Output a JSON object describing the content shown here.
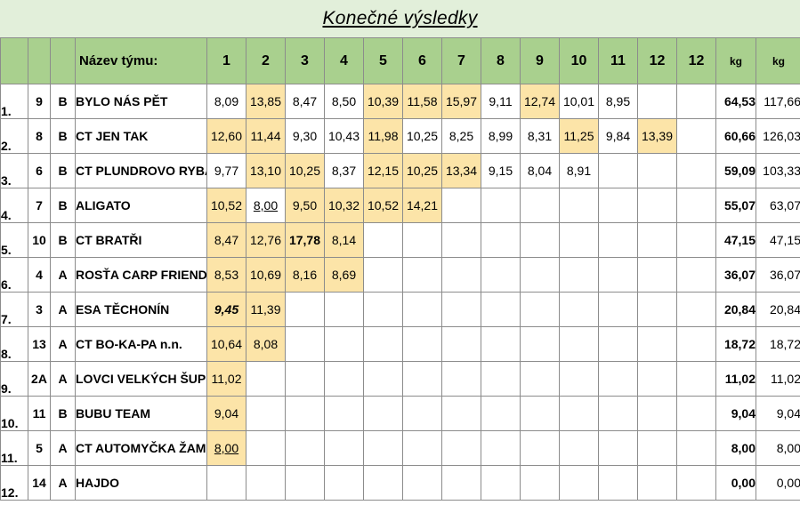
{
  "title": "Konečné výsledky",
  "headers": {
    "team": "Název týmu:",
    "rounds": [
      "1",
      "2",
      "3",
      "4",
      "5",
      "6",
      "7",
      "8",
      "9",
      "10",
      "11",
      "12",
      "12"
    ],
    "kg1": "kg",
    "kg2": "kg"
  },
  "highlight_color": "#fce4a8",
  "header_color": "#a9d08e",
  "title_bg_color": "#e2efda",
  "rows": [
    {
      "rank": "1.",
      "num": "9",
      "cat": "B",
      "team": "BYLO NÁS PĚT",
      "kg1": "64,53",
      "kg2": "117,66",
      "values": [
        {
          "v": "8,09"
        },
        {
          "v": "13,85",
          "hl": true
        },
        {
          "v": "8,47"
        },
        {
          "v": "8,50"
        },
        {
          "v": "10,39",
          "hl": true
        },
        {
          "v": "11,58",
          "hl": true
        },
        {
          "v": "15,97",
          "hl": true
        },
        {
          "v": "9,11"
        },
        {
          "v": "12,74",
          "hl": true
        },
        {
          "v": "10,01"
        },
        {
          "v": "8,95"
        },
        {
          "v": ""
        },
        {
          "v": ""
        }
      ]
    },
    {
      "rank": "2.",
      "num": "8",
      "cat": "B",
      "team": "CT JEN TAK",
      "kg1": "60,66",
      "kg2": "126,03",
      "values": [
        {
          "v": "12,60",
          "hl": true
        },
        {
          "v": "11,44",
          "hl": true
        },
        {
          "v": "9,30"
        },
        {
          "v": "10,43"
        },
        {
          "v": "11,98",
          "hl": true
        },
        {
          "v": "10,25"
        },
        {
          "v": "8,25"
        },
        {
          "v": "8,99"
        },
        {
          "v": "8,31"
        },
        {
          "v": "11,25",
          "hl": true
        },
        {
          "v": "9,84"
        },
        {
          "v": "13,39",
          "hl": true
        },
        {
          "v": ""
        }
      ]
    },
    {
      "rank": "3.",
      "num": "6",
      "cat": "B",
      "team": "CT PLUNDROVO RYBÁŘI",
      "kg1": "59,09",
      "kg2": "103,33",
      "values": [
        {
          "v": "9,77"
        },
        {
          "v": "13,10",
          "hl": true
        },
        {
          "v": "10,25",
          "hl": true
        },
        {
          "v": "8,37"
        },
        {
          "v": "12,15",
          "hl": true
        },
        {
          "v": "10,25",
          "hl": true
        },
        {
          "v": "13,34",
          "hl": true
        },
        {
          "v": "9,15"
        },
        {
          "v": "8,04"
        },
        {
          "v": "8,91"
        },
        {
          "v": ""
        },
        {
          "v": ""
        },
        {
          "v": ""
        }
      ]
    },
    {
      "rank": "4.",
      "num": "7",
      "cat": "B",
      "team": "ALIGATO",
      "kg1": "55,07",
      "kg2": "63,07",
      "values": [
        {
          "v": "10,52",
          "hl": true
        },
        {
          "v": "8,00",
          "u": true
        },
        {
          "v": "9,50",
          "hl": true
        },
        {
          "v": "10,32",
          "hl": true
        },
        {
          "v": "10,52",
          "hl": true
        },
        {
          "v": "14,21",
          "hl": true
        },
        {
          "v": ""
        },
        {
          "v": ""
        },
        {
          "v": ""
        },
        {
          "v": ""
        },
        {
          "v": ""
        },
        {
          "v": ""
        },
        {
          "v": ""
        }
      ]
    },
    {
      "rank": "5.",
      "num": "10",
      "cat": "B",
      "team": "CT BRATŘI",
      "kg1": "47,15",
      "kg2": "47,15",
      "values": [
        {
          "v": "8,47",
          "hl": true
        },
        {
          "v": "12,76",
          "hl": true
        },
        {
          "v": "17,78",
          "hl": true,
          "b": true
        },
        {
          "v": "8,14",
          "hl": true
        },
        {
          "v": ""
        },
        {
          "v": ""
        },
        {
          "v": ""
        },
        {
          "v": ""
        },
        {
          "v": ""
        },
        {
          "v": ""
        },
        {
          "v": ""
        },
        {
          "v": ""
        },
        {
          "v": ""
        }
      ]
    },
    {
      "rank": "6.",
      "num": "4",
      "cat": "A",
      "team": "ROSŤA CARP FRIENDS",
      "kg1": "36,07",
      "kg2": "36,07",
      "values": [
        {
          "v": "8,53",
          "hl": true
        },
        {
          "v": "10,69",
          "hl": true
        },
        {
          "v": "8,16",
          "hl": true
        },
        {
          "v": "8,69",
          "hl": true
        },
        {
          "v": ""
        },
        {
          "v": ""
        },
        {
          "v": ""
        },
        {
          "v": ""
        },
        {
          "v": ""
        },
        {
          "v": ""
        },
        {
          "v": ""
        },
        {
          "v": ""
        },
        {
          "v": ""
        }
      ]
    },
    {
      "rank": "7.",
      "num": "3",
      "cat": "A",
      "team": "ESA TĚCHONÍN",
      "kg1": "20,84",
      "kg2": "20,84",
      "values": [
        {
          "v": "9,45",
          "hl": true,
          "bi": true
        },
        {
          "v": "11,39",
          "hl": true
        },
        {
          "v": ""
        },
        {
          "v": ""
        },
        {
          "v": ""
        },
        {
          "v": ""
        },
        {
          "v": ""
        },
        {
          "v": ""
        },
        {
          "v": ""
        },
        {
          "v": ""
        },
        {
          "v": ""
        },
        {
          "v": ""
        },
        {
          "v": ""
        }
      ]
    },
    {
      "rank": "8.",
      "num": "13",
      "cat": "A",
      "team": "CT BO-KA-PA n.n.",
      "kg1": "18,72",
      "kg2": "18,72",
      "values": [
        {
          "v": "10,64",
          "hl": true
        },
        {
          "v": "8,08",
          "hl": true
        },
        {
          "v": ""
        },
        {
          "v": ""
        },
        {
          "v": ""
        },
        {
          "v": ""
        },
        {
          "v": ""
        },
        {
          "v": ""
        },
        {
          "v": ""
        },
        {
          "v": ""
        },
        {
          "v": ""
        },
        {
          "v": ""
        },
        {
          "v": ""
        }
      ]
    },
    {
      "rank": "9.",
      "num": "2A",
      "cat": "A",
      "team": "LOVCI VELKÝCH ŠUPIN",
      "kg1": "11,02",
      "kg2": "11,02",
      "values": [
        {
          "v": "11,02",
          "hl": true
        },
        {
          "v": ""
        },
        {
          "v": ""
        },
        {
          "v": ""
        },
        {
          "v": ""
        },
        {
          "v": ""
        },
        {
          "v": ""
        },
        {
          "v": ""
        },
        {
          "v": ""
        },
        {
          "v": ""
        },
        {
          "v": ""
        },
        {
          "v": ""
        },
        {
          "v": ""
        }
      ]
    },
    {
      "rank": "10.",
      "num": "11",
      "cat": "B",
      "team": "BUBU TEAM",
      "kg1": "9,04",
      "kg2": "9,04",
      "values": [
        {
          "v": "9,04",
          "hl": true
        },
        {
          "v": ""
        },
        {
          "v": ""
        },
        {
          "v": ""
        },
        {
          "v": ""
        },
        {
          "v": ""
        },
        {
          "v": ""
        },
        {
          "v": ""
        },
        {
          "v": ""
        },
        {
          "v": ""
        },
        {
          "v": ""
        },
        {
          "v": ""
        },
        {
          "v": ""
        }
      ]
    },
    {
      "rank": "11.",
      "num": "5",
      "cat": "A",
      "team": "CT AUTOMYČKA ŽAMBERK",
      "kg1": "8,00",
      "kg2": "8,00",
      "values": [
        {
          "v": "8,00",
          "hl": true,
          "u": true
        },
        {
          "v": ""
        },
        {
          "v": ""
        },
        {
          "v": ""
        },
        {
          "v": ""
        },
        {
          "v": ""
        },
        {
          "v": ""
        },
        {
          "v": ""
        },
        {
          "v": ""
        },
        {
          "v": ""
        },
        {
          "v": ""
        },
        {
          "v": ""
        },
        {
          "v": ""
        }
      ]
    },
    {
      "rank": "12.",
      "num": "14",
      "cat": "A",
      "team": "HAJDO",
      "kg1": "0,00",
      "kg2": "0,00",
      "values": [
        {
          "v": ""
        },
        {
          "v": ""
        },
        {
          "v": ""
        },
        {
          "v": ""
        },
        {
          "v": ""
        },
        {
          "v": ""
        },
        {
          "v": ""
        },
        {
          "v": ""
        },
        {
          "v": ""
        },
        {
          "v": ""
        },
        {
          "v": ""
        },
        {
          "v": ""
        },
        {
          "v": ""
        }
      ]
    }
  ]
}
